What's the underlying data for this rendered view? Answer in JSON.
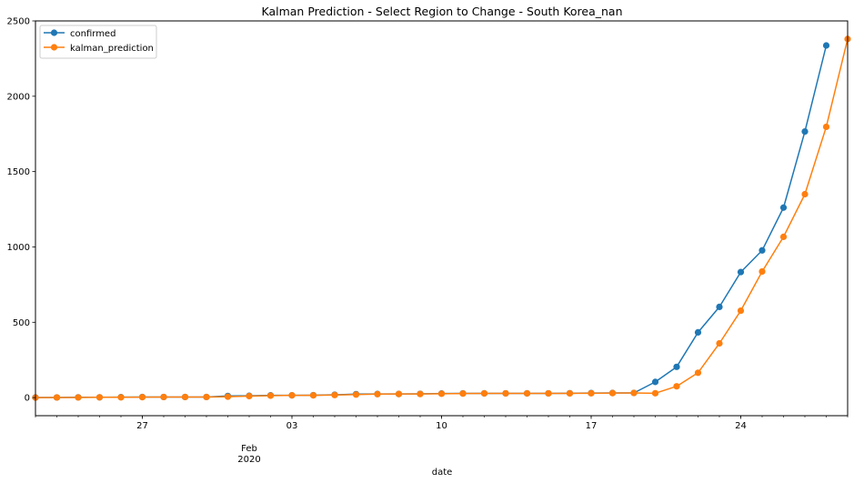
{
  "chart_data": {
    "type": "line",
    "title": "Kalman Prediction - Select Region to Change - South Korea_nan",
    "xlabel": "date",
    "ylabel": "",
    "ylim": [
      -120,
      2500
    ],
    "yticks": [
      0,
      500,
      1000,
      1500,
      2000,
      2500
    ],
    "x": [
      "2020-01-22",
      "2020-01-23",
      "2020-01-24",
      "2020-01-25",
      "2020-01-26",
      "2020-01-27",
      "2020-01-28",
      "2020-01-29",
      "2020-01-30",
      "2020-01-31",
      "2020-02-01",
      "2020-02-02",
      "2020-02-03",
      "2020-02-04",
      "2020-02-05",
      "2020-02-06",
      "2020-02-07",
      "2020-02-08",
      "2020-02-09",
      "2020-02-10",
      "2020-02-11",
      "2020-02-12",
      "2020-02-13",
      "2020-02-14",
      "2020-02-15",
      "2020-02-16",
      "2020-02-17",
      "2020-02-18",
      "2020-02-19",
      "2020-02-20",
      "2020-02-21",
      "2020-02-22",
      "2020-02-23",
      "2020-02-24",
      "2020-02-25",
      "2020-02-26",
      "2020-02-27",
      "2020-02-28",
      "2020-02-29"
    ],
    "xlim": [
      "2020-01-22",
      "2020-02-29"
    ],
    "xticks": [
      {
        "date": "2020-01-27",
        "label": "27"
      },
      {
        "date": "2020-02-03",
        "label": "03"
      },
      {
        "date": "2020-02-10",
        "label": "10"
      },
      {
        "date": "2020-02-17",
        "label": "17"
      },
      {
        "date": "2020-02-24",
        "label": "24"
      }
    ],
    "month_label": "Feb",
    "month_label_date": "2020-02-01",
    "year_label": "2020",
    "series": [
      {
        "name": "confirmed",
        "color": "#1f77b4",
        "values": [
          1,
          1,
          2,
          2,
          3,
          4,
          4,
          4,
          4,
          11,
          12,
          15,
          15,
          16,
          19,
          23,
          24,
          24,
          25,
          27,
          28,
          28,
          28,
          28,
          28,
          29,
          30,
          31,
          31,
          104,
          204,
          433,
          602,
          833,
          977,
          1261,
          1766,
          2337,
          null
        ]
      },
      {
        "name": "kalman_prediction",
        "color": "#ff7f0e",
        "values": [
          0,
          1,
          1,
          2,
          2,
          3,
          4,
          4,
          4,
          6,
          10,
          13,
          15,
          15,
          17,
          20,
          23,
          24,
          24,
          26,
          27,
          28,
          28,
          28,
          28,
          28,
          29,
          30,
          31,
          29,
          75,
          165,
          360,
          577,
          837,
          1067,
          1350,
          1797,
          2380
        ]
      }
    ],
    "legend": {
      "placement": "top-left"
    },
    "grid": false
  }
}
